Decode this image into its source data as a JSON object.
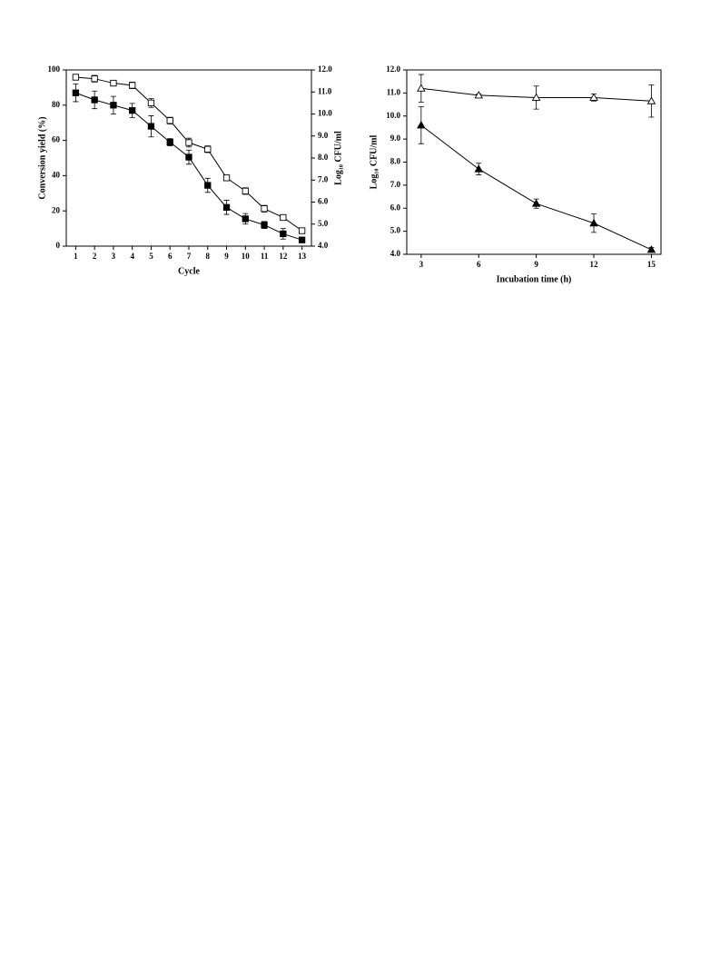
{
  "chart_data": [
    {
      "type": "line",
      "x_label": "Cycle",
      "y_label": "Conversion yield (%)",
      "y2_label": "Log₁₀ CFU/ml",
      "x": [
        1,
        2,
        3,
        4,
        5,
        6,
        7,
        8,
        9,
        10,
        11,
        12,
        13
      ],
      "xlim": [
        0.5,
        13.5
      ],
      "xticks": [
        1,
        2,
        3,
        4,
        5,
        6,
        7,
        8,
        9,
        10,
        11,
        12,
        13
      ],
      "ylim": [
        0,
        100
      ],
      "yticks": [
        0,
        20,
        40,
        60,
        80,
        100
      ],
      "y2lim": [
        4.0,
        12.0
      ],
      "y2ticks": [
        {
          "value": 4.0,
          "label": "4.0"
        },
        {
          "value": 5.0,
          "label": "5.0"
        },
        {
          "value": 6.0,
          "label": "6.0"
        },
        {
          "value": 7.0,
          "label": "7.0"
        },
        {
          "value": 8.0,
          "label": "8.0"
        },
        {
          "value": 9.0,
          "label": "9.0"
        },
        {
          "value": 10.0,
          "label": "10.0"
        },
        {
          "value": 11.0,
          "label": "11.0"
        },
        {
          "value": 12.0,
          "label": "12.0"
        }
      ],
      "series": [
        {
          "color": "#000000",
          "marker": "square",
          "filled": true,
          "values": [
            87,
            83,
            80,
            77,
            68,
            59,
            50.5,
            34.5,
            22,
            15.5,
            12,
            7,
            3.5
          ],
          "errors": [
            5,
            5,
            5,
            4,
            6,
            2,
            4,
            4,
            4,
            3,
            2,
            3,
            1
          ]
        },
        {
          "color": "#000000",
          "marker": "square",
          "filled": false,
          "axis": "y2",
          "values": [
            11.67,
            11.6,
            11.4,
            11.3,
            10.5,
            9.7,
            8.7,
            8.4,
            7.1,
            6.5,
            5.7,
            5.3,
            4.7
          ],
          "errors": [
            0.12,
            0.15,
            0.05,
            0.15,
            0.2,
            0.15,
            0.2,
            0.15,
            0.05,
            0.15,
            0.15,
            0.1,
            0.1
          ]
        }
      ]
    },
    {
      "type": "line",
      "x_label": "Incubation time (h)",
      "y_label": "Log₁₀ CFU/ml",
      "x": [
        3,
        6,
        9,
        12,
        15
      ],
      "xlim": [
        2.25,
        15.5
      ],
      "xticks": [
        3,
        6,
        9,
        12,
        15
      ],
      "ylim": [
        4.0,
        12.0
      ],
      "yticks": [
        {
          "value": 4.0,
          "label": "4.0"
        },
        {
          "value": 5.0,
          "label": "5.0"
        },
        {
          "value": 6.0,
          "label": "6.0"
        },
        {
          "value": 7.0,
          "label": "7.0"
        },
        {
          "value": 8.0,
          "label": "8.0"
        },
        {
          "value": 9.0,
          "label": "9.0"
        },
        {
          "value": 10.0,
          "label": "10.0"
        },
        {
          "value": 11.0,
          "label": "11.0"
        },
        {
          "value": 12.0,
          "label": "12.0"
        }
      ],
      "series": [
        {
          "color": "#000000",
          "marker": "triangle",
          "filled": false,
          "values": [
            11.2,
            10.9,
            10.8,
            10.8,
            10.65
          ],
          "errors": [
            0.6,
            0.05,
            0.5,
            0.15,
            0.7
          ]
        },
        {
          "color": "#000000",
          "marker": "triangle",
          "filled": true,
          "values": [
            9.6,
            7.7,
            6.2,
            5.35,
            4.2
          ],
          "errors": [
            0.8,
            0.25,
            0.2,
            0.4,
            0.1
          ]
        }
      ]
    }
  ]
}
